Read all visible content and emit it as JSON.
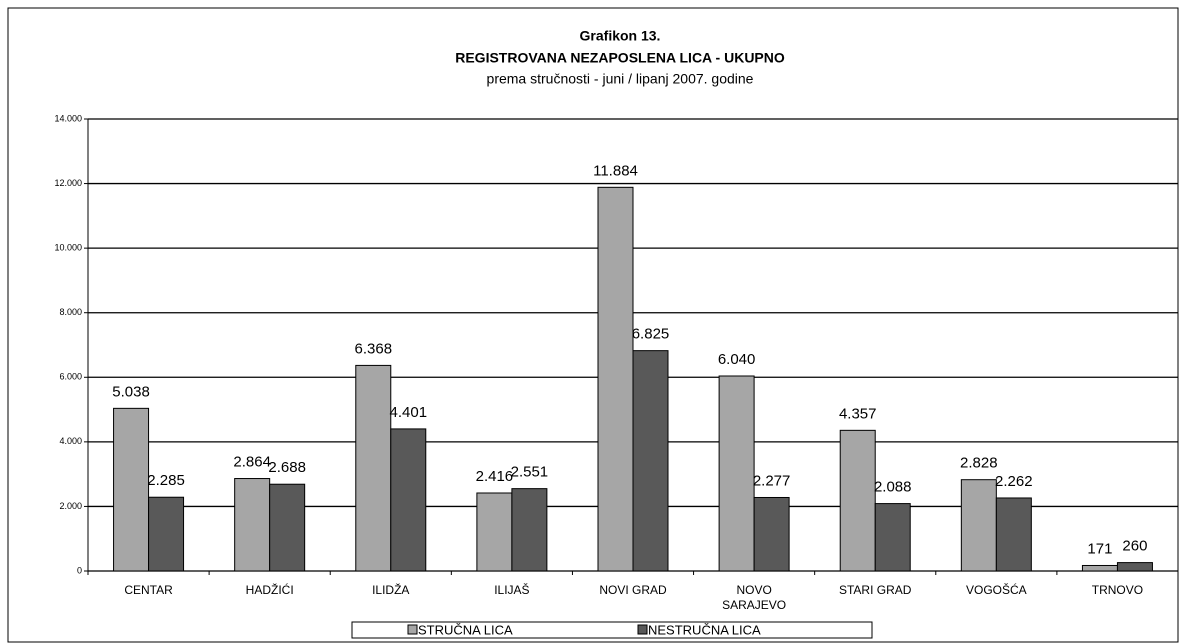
{
  "chart_data": {
    "type": "bar",
    "title": "Grafikon 13.",
    "subtitle": "REGISTROVANA NEZAPOSLENA LICA - UKUPNO",
    "subtitle2": "prema stručnosti - juni / lipanj 2007. godine",
    "categories": [
      "CENTAR",
      "HADŽIĆI",
      "ILIDŽA",
      "ILIJAŠ",
      "NOVI GRAD",
      "NOVO SARAJEVO",
      "STARI GRAD",
      "VOGOŠĆA",
      "TRNOVO"
    ],
    "series": [
      {
        "name": "STRUČNA LICA",
        "color": "#a6a6a6",
        "values": [
          5038,
          2864,
          6368,
          2416,
          11884,
          6040,
          4357,
          2828,
          171
        ],
        "value_labels": [
          "5.038",
          "2.864",
          "6.368",
          "2.416",
          "11.884",
          "6.040",
          "4.357",
          "2.828",
          "171"
        ]
      },
      {
        "name": "NESTRUČNA LICA",
        "color": "#595959",
        "values": [
          2285,
          2688,
          4401,
          2551,
          6825,
          2277,
          2088,
          2262,
          260
        ],
        "value_labels": [
          "2.285",
          "2.688",
          "4.401",
          "2.551",
          "6.825",
          "2.277",
          "2.088",
          "2.262",
          "260"
        ]
      }
    ],
    "ylim": [
      0,
      14000
    ],
    "yticks": [
      0,
      {
        "value": 2000,
        "label": "2.000"
      },
      {
        "value": 4000,
        "label": "4.000"
      },
      {
        "value": 6000,
        "label": "6.000"
      },
      {
        "value": 8000,
        "label": "8.000"
      },
      {
        "value": 10000,
        "label": "10.000"
      },
      {
        "value": 12000,
        "label": "12.000"
      },
      {
        "value": 14000,
        "label": "14.000"
      }
    ],
    "grid": true,
    "legend": "bottom"
  }
}
